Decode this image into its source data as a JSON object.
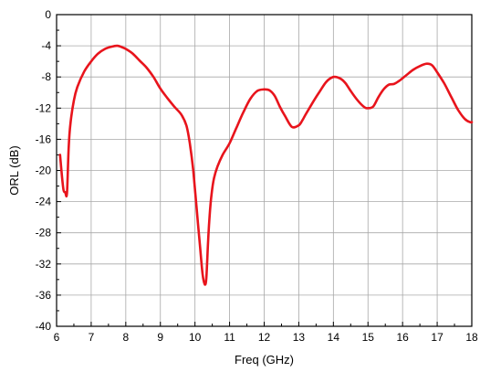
{
  "chart_data": {
    "type": "line",
    "title": "",
    "xlabel": "Freq (GHz)",
    "ylabel": "ORL (dB)",
    "xlim": [
      6,
      18
    ],
    "ylim": [
      -40,
      0
    ],
    "xticks": [
      6,
      7,
      8,
      9,
      10,
      11,
      12,
      13,
      14,
      15,
      16,
      17,
      18
    ],
    "yticks": [
      0,
      -4,
      -8,
      -12,
      -16,
      -20,
      -24,
      -28,
      -32,
      -36,
      -40
    ],
    "grid": true,
    "line_color": "#e8141c",
    "series": [
      {
        "x": [
          6.1,
          6.15,
          6.2,
          6.25,
          6.3,
          6.35,
          6.4,
          6.5,
          6.6,
          6.8,
          7.0,
          7.2,
          7.4,
          7.6,
          7.75,
          7.9,
          8.0,
          8.2,
          8.4,
          8.6,
          8.8,
          9.0,
          9.2,
          9.4,
          9.6,
          9.75,
          9.85,
          9.95,
          10.05,
          10.15,
          10.22,
          10.28,
          10.32,
          10.35,
          10.38,
          10.42,
          10.48,
          10.55,
          10.65,
          10.8,
          11.0,
          11.2,
          11.4,
          11.6,
          11.8,
          12.0,
          12.15,
          12.3,
          12.45,
          12.6,
          12.8,
          13.0,
          13.1,
          13.2,
          13.4,
          13.6,
          13.8,
          14.0,
          14.2,
          14.35,
          14.5,
          14.7,
          14.9,
          15.0,
          15.15,
          15.3,
          15.45,
          15.6,
          15.75,
          15.9,
          16.1,
          16.3,
          16.5,
          16.7,
          16.85,
          17.0,
          17.2,
          17.4,
          17.6,
          17.8,
          17.95,
          18.0
        ],
        "y": [
          -18.0,
          -20.5,
          -22.5,
          -22.8,
          -22.9,
          -17.0,
          -14.0,
          -11.0,
          -9.3,
          -7.3,
          -6.0,
          -5.0,
          -4.4,
          -4.1,
          -4.0,
          -4.2,
          -4.4,
          -5.0,
          -5.9,
          -6.8,
          -8.0,
          -9.5,
          -10.7,
          -11.8,
          -12.8,
          -14.2,
          -16.5,
          -20.0,
          -25.0,
          -30.0,
          -33.3,
          -34.6,
          -34.2,
          -32.0,
          -29.0,
          -26.0,
          -23.0,
          -21.0,
          -19.5,
          -18.0,
          -16.5,
          -14.5,
          -12.5,
          -10.8,
          -9.8,
          -9.6,
          -9.7,
          -10.4,
          -11.8,
          -13.0,
          -14.4,
          -14.2,
          -13.6,
          -12.8,
          -11.3,
          -9.9,
          -8.6,
          -8.0,
          -8.2,
          -8.8,
          -9.8,
          -11.0,
          -11.9,
          -12.0,
          -11.8,
          -10.6,
          -9.6,
          -9.0,
          -8.9,
          -8.5,
          -7.8,
          -7.1,
          -6.6,
          -6.3,
          -6.5,
          -7.4,
          -8.8,
          -10.5,
          -12.2,
          -13.4,
          -13.8,
          -13.8
        ]
      }
    ]
  }
}
